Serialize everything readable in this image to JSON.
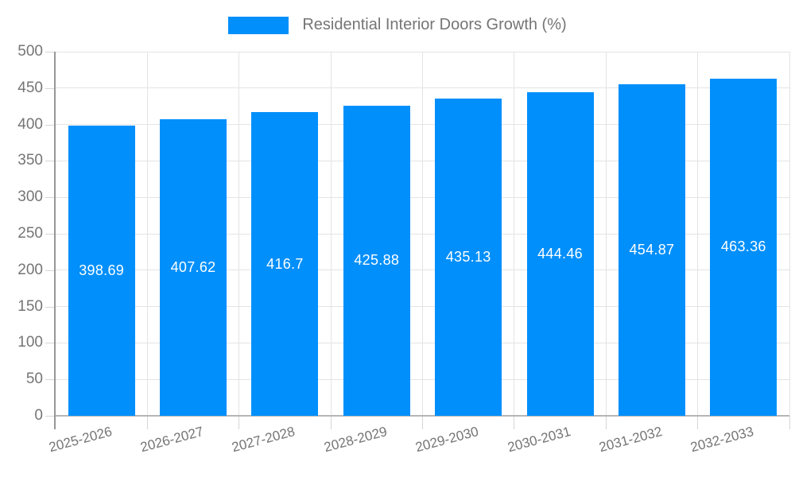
{
  "chart_data": {
    "type": "bar",
    "title": "Residential Interior Doors Growth (%)",
    "categories": [
      "2025-2026",
      "2026-2027",
      "2027-2028",
      "2028-2029",
      "2029-2030",
      "2030-2031",
      "2031-2032",
      "2032-2033"
    ],
    "values": [
      398.69,
      407.62,
      416.7,
      425.88,
      435.13,
      444.46,
      454.87,
      463.36
    ],
    "value_labels": [
      "398.69",
      "407.62",
      "416.7",
      "425.88",
      "435.13",
      "444.46",
      "454.87",
      "463.36"
    ],
    "xlabel": "",
    "ylabel": "",
    "ylim": [
      0,
      500
    ],
    "yticks": [
      0,
      50,
      100,
      150,
      200,
      250,
      300,
      350,
      400,
      450,
      500
    ],
    "grid": true,
    "legend_position": "top",
    "colors": {
      "bar": "#008FFB",
      "axis_text": "#757575",
      "value_label": "#ffffff",
      "gridline": "#e4e4e4",
      "axis_line": "#979797",
      "baseline": "#b6b6b6",
      "tick": "#d6d6d6"
    }
  }
}
